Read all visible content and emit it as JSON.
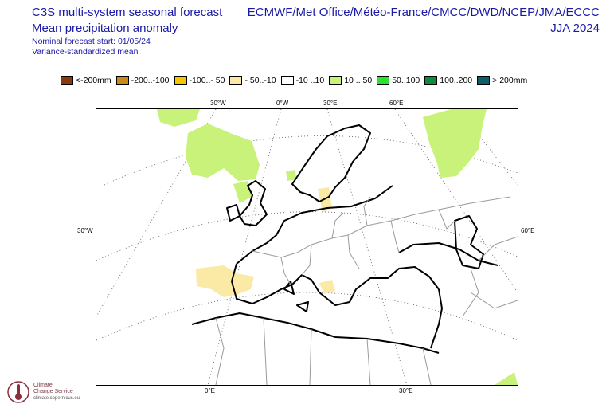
{
  "header": {
    "title": "C3S multi-system seasonal forecast",
    "subtitle": "Mean precipitation anomaly",
    "forecast_start": "Nominal forecast start: 01/05/24",
    "method": "Variance-standardized mean",
    "models": "ECMWF/Met Office/Météo-France/CMCC/DWD/NCEP/JMA/ECCC",
    "season": "JJA 2024"
  },
  "legend": [
    {
      "label": "<-200mm",
      "color": "#8b3a0e"
    },
    {
      "label": "-200..-100",
      "color": "#c98a1a"
    },
    {
      "label": "-100..- 50",
      "color": "#f7c500"
    },
    {
      "label": "- 50..-10",
      "color": "#fbe9a6"
    },
    {
      "label": "-10 ..10",
      "color": "#ffffff"
    },
    {
      "label": "10 .. 50",
      "color": "#c9f27a"
    },
    {
      "label": "50..100",
      "color": "#2fe02f"
    },
    {
      "label": "100..200",
      "color": "#0f8c3a"
    },
    {
      "label": "> 200mm",
      "color": "#0c5e6b"
    }
  ],
  "map": {
    "top_labels": [
      "30°W",
      "0°W",
      "30°E",
      "60°E"
    ],
    "left_label": "30°W",
    "right_label": "60°E",
    "bottom_labels": [
      "0°E",
      "30°E"
    ]
  },
  "logo": {
    "line1": "Climate",
    "line2": "Change Service",
    "url": "climate.copernicus.eu"
  }
}
